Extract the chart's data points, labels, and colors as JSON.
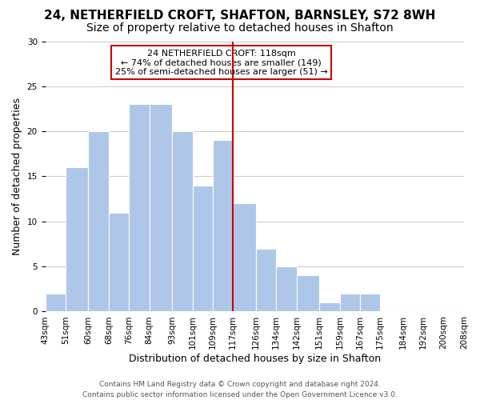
{
  "title": "24, NETHERFIELD CROFT, SHAFTON, BARNSLEY, S72 8WH",
  "subtitle": "Size of property relative to detached houses in Shafton",
  "xlabel": "Distribution of detached houses by size in Shafton",
  "ylabel": "Number of detached properties",
  "bin_labels": [
    "43sqm",
    "51sqm",
    "60sqm",
    "68sqm",
    "76sqm",
    "84sqm",
    "93sqm",
    "101sqm",
    "109sqm",
    "117sqm",
    "126sqm",
    "134sqm",
    "142sqm",
    "151sqm",
    "159sqm",
    "167sqm",
    "175sqm",
    "184sqm",
    "192sqm",
    "200sqm",
    "208sqm"
  ],
  "tick_positions": [
    43,
    51,
    60,
    68,
    76,
    84,
    93,
    101,
    109,
    117,
    126,
    134,
    142,
    151,
    159,
    167,
    175,
    184,
    192,
    200,
    208
  ],
  "bar_values": [
    2,
    16,
    20,
    11,
    23,
    23,
    20,
    14,
    19,
    12,
    7,
    5,
    4,
    1,
    2,
    2,
    0,
    0,
    0
  ],
  "bar_left_edges": [
    43,
    51,
    60,
    68,
    76,
    84,
    93,
    101,
    109,
    117,
    126,
    134,
    142,
    151,
    159,
    167,
    175,
    184,
    192
  ],
  "bar_widths": [
    8,
    9,
    8,
    8,
    8,
    9,
    8,
    8,
    8,
    9,
    8,
    8,
    9,
    8,
    8,
    8,
    9,
    8,
    8
  ],
  "bar_color": "#aec6e8",
  "bar_edge_color": "#ffffff",
  "vline_x": 117,
  "vline_color": "#cc0000",
  "annotation_line1": "24 NETHERFIELD CROFT: 118sqm",
  "annotation_line2": "← 74% of detached houses are smaller (149)",
  "annotation_line3": "25% of semi-detached houses are larger (51) →",
  "box_facecolor": "#ffffff",
  "box_edgecolor": "#cc0000",
  "ylim": [
    0,
    30
  ],
  "xlim": [
    43,
    208
  ],
  "footer_text": "Contains HM Land Registry data © Crown copyright and database right 2024.\nContains public sector information licensed under the Open Government Licence v3.0.",
  "background_color": "#ffffff",
  "grid_color": "#cccccc",
  "title_fontsize": 11,
  "subtitle_fontsize": 10,
  "axis_label_fontsize": 9,
  "tick_fontsize": 7.5,
  "footer_fontsize": 6.5,
  "annotation_fontsize": 8
}
